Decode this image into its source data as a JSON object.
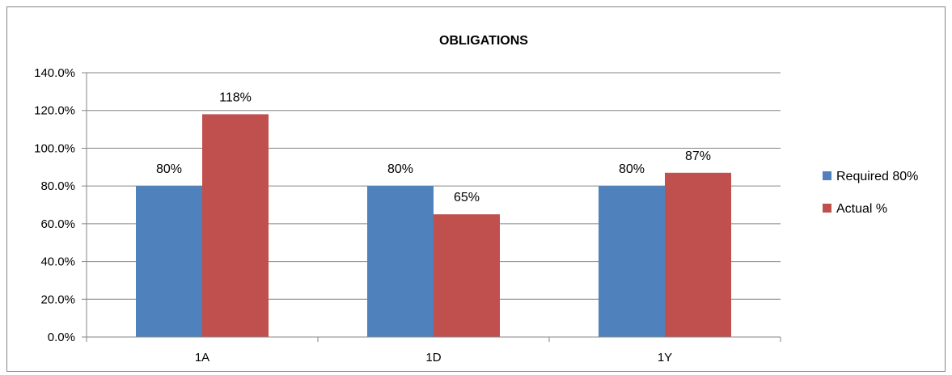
{
  "chart_data": {
    "type": "bar",
    "title": "OBLIGATIONS",
    "xlabel": "",
    "ylabel": "",
    "categories": [
      "1A",
      "1D",
      "1Y"
    ],
    "series": [
      {
        "name": "Required 80%",
        "values": [
          80,
          80,
          80
        ],
        "labels": [
          "80%",
          "80%",
          "80%"
        ],
        "color": "#4f81bd"
      },
      {
        "name": "Actual %",
        "values": [
          118,
          65,
          87
        ],
        "labels": [
          "118%",
          "65%",
          "87%"
        ],
        "color": "#c0504d"
      }
    ],
    "ylim": [
      0,
      140
    ],
    "yticks": [
      0,
      20,
      40,
      60,
      80,
      100,
      120,
      140
    ],
    "ytick_labels": [
      "0.0%",
      "20.0%",
      "40.0%",
      "60.0%",
      "80.0%",
      "100.0%",
      "120.0%",
      "140.0%"
    ],
    "grid": true,
    "legend": "right",
    "gridline_color": "#868686"
  }
}
